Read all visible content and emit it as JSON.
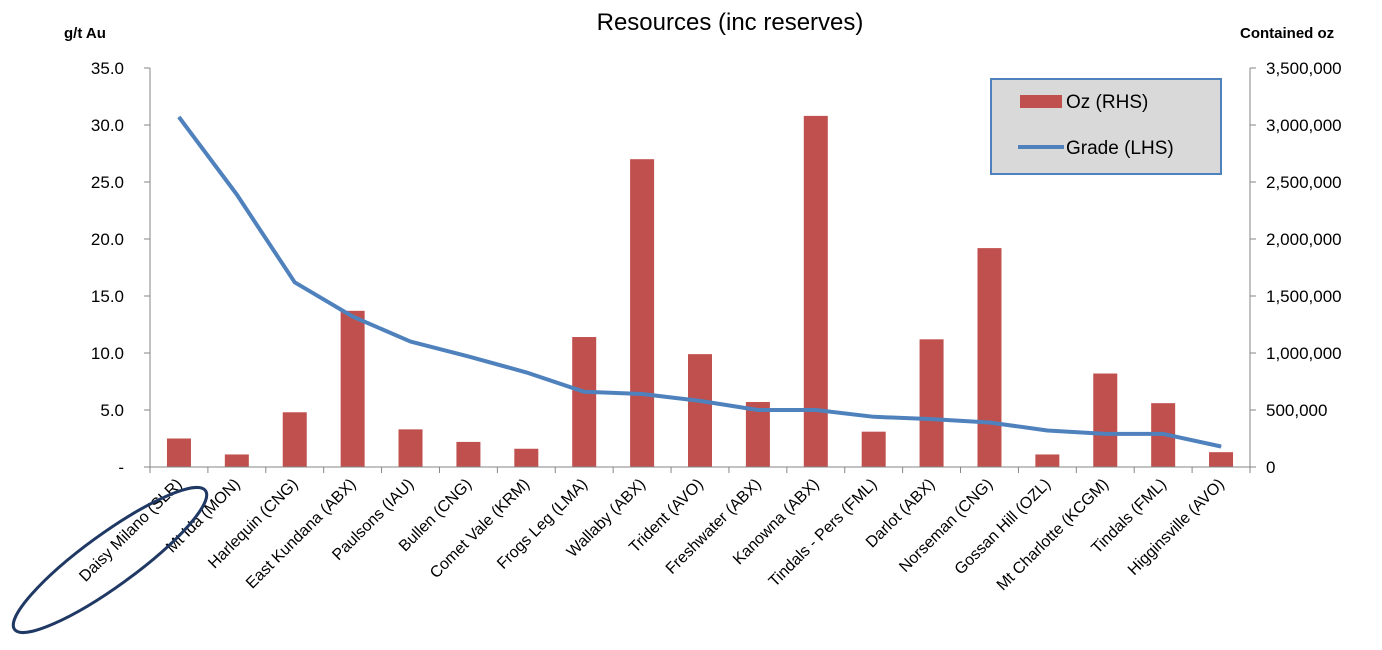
{
  "chart_data": {
    "type": "bar+line",
    "title": "Resources (inc reserves)",
    "left_axis_label": "g/t Au",
    "right_axis_label": "Contained oz",
    "categories": [
      "Daisy Milano (SLR)",
      "Mt Ida (MON)",
      "Harlequin (CNG)",
      "East Kundana (ABX)",
      "Paulsons (IAU)",
      "Bullen (CNG)",
      "Comet Vale  (KRM)",
      "Frogs Leg (LMA)",
      "Wallaby (ABX)",
      "Trident (AVO)",
      "Freshwater (ABX)",
      "Kanowna (ABX)",
      "Tindals - Pers (FML)",
      "Darlot (ABX)",
      "Norseman (CNG)",
      "Gossan Hill (OZL)",
      "Mt Charlotte  (KCGM)",
      "Tindals (FML)",
      "Higginsville (AVO)"
    ],
    "series": [
      {
        "name": "Oz (RHS)",
        "type": "bar",
        "axis": "right",
        "color": "#C0504D",
        "values": [
          250000,
          110000,
          480000,
          1370000,
          330000,
          220000,
          160000,
          1140000,
          2700000,
          990000,
          570000,
          3080000,
          310000,
          1120000,
          1920000,
          110000,
          820000,
          560000,
          130000
        ]
      },
      {
        "name": "Grade (LHS)",
        "type": "line",
        "axis": "left",
        "color": "#4F81BD",
        "values": [
          30.7,
          23.9,
          16.2,
          13.2,
          11.0,
          9.7,
          8.3,
          6.6,
          6.4,
          5.8,
          5.0,
          5.0,
          4.4,
          4.2,
          3.9,
          3.2,
          2.9,
          2.9,
          1.8
        ]
      }
    ],
    "left_ylim": [
      0,
      35
    ],
    "left_ticks": [
      "-",
      "5.0",
      "10.0",
      "15.0",
      "20.0",
      "25.0",
      "30.0",
      "35.0"
    ],
    "right_ylim": [
      0,
      3500000
    ],
    "right_ticks": [
      "0",
      "500,000",
      "1,000,000",
      "1,500,000",
      "2,000,000",
      "2,500,000",
      "3,000,000",
      "3,500,000"
    ],
    "legend_position": "top-right",
    "grid": false,
    "highlight": "Daisy Milano (SLR)"
  }
}
